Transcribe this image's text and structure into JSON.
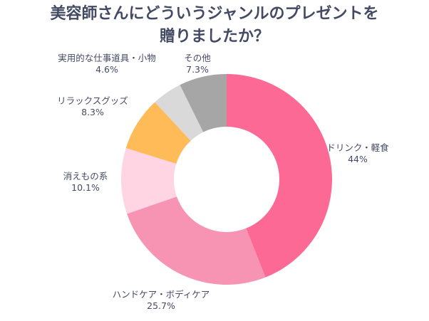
{
  "chart_data": {
    "type": "pie",
    "donut": true,
    "title_line1": "美容師さんにどういうジャンルのプレゼントを",
    "title_line2": "贈りましたか？",
    "start": "top",
    "direction": "clockwise",
    "slices": [
      {
        "label": "ドリンク・軽食",
        "value": 44,
        "value_label": "44%",
        "color": "#FD6995"
      },
      {
        "label": "ハンドケア・ボディケア",
        "value": 25.7,
        "value_label": "25.7%",
        "color": "#F793B3"
      },
      {
        "label": "消えもの系",
        "value": 10.1,
        "value_label": "10.1%",
        "color": "#FFD4E3"
      },
      {
        "label": "リラックスグッズ",
        "value": 8.3,
        "value_label": "8.3%",
        "color": "#FFBB58"
      },
      {
        "label": "実用的な仕事道具・小物",
        "value": 4.6,
        "value_label": "4.6%",
        "color": "#D9D9D9"
      },
      {
        "label": "その他",
        "value": 7.3,
        "value_label": "7.3%",
        "color": "#A6A6A6"
      }
    ]
  }
}
